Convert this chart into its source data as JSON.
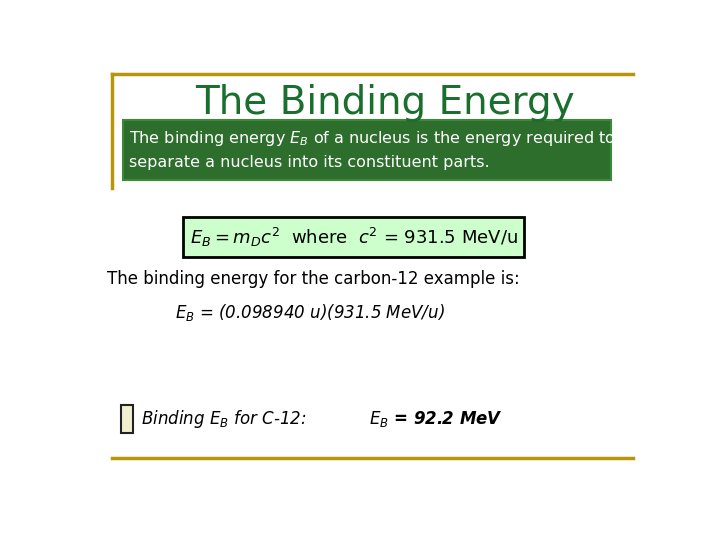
{
  "title": "The Binding Energy",
  "title_color": "#1a6e2e",
  "title_fontsize": 28,
  "background_color": "#ffffff",
  "border_color": "#b8960c",
  "green_box_bg": "#2d6e2d",
  "green_box_border": "#3a8a3a",
  "green_box_text_color": "#ffffff",
  "green_box_text": "The binding energy $E_B$ of a nucleus is the energy required to\nseparate a nucleus into its constituent parts.",
  "formula_box_bg": "#ccffcc",
  "formula_box_border": "#000000",
  "formula_text": "$E_B = m_Dc^2$  where  $c^2$ = 931.5 MeV/u",
  "body_text1": "The binding energy for the carbon-12 example is:",
  "body_text2": "$E_B$ = (0.098940 u)(931.5 MeV/u)",
  "bottom_text1": "Binding $E_B$ for C-12:",
  "bottom_text2": "$E_B$ = 92.2 MeV",
  "text_color": "#000000",
  "accent_rect_face": "#f0f0d0",
  "accent_rect_edge": "#222222"
}
